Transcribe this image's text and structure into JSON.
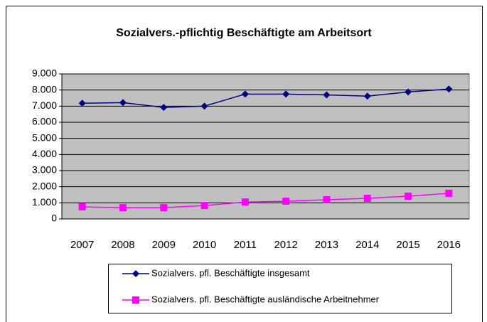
{
  "chart_data": {
    "type": "line",
    "title": "Sozialvers.-pflichtig Beschäftigte am Arbeitsort",
    "categories": [
      "2007",
      "2008",
      "2009",
      "2010",
      "2011",
      "2012",
      "2013",
      "2014",
      "2015",
      "2016"
    ],
    "series": [
      {
        "name": "Sozialvers. pfl. Beschäftigte insgesamt",
        "color": "#000080",
        "marker": "diamond",
        "values": [
          7180,
          7220,
          6920,
          7000,
          7750,
          7750,
          7700,
          7620,
          7880,
          8060
        ]
      },
      {
        "name": "Sozialvers. pfl. Beschäftigte ausländische Arbeitnehmer",
        "color": "#ff00ff",
        "marker": "square",
        "values": [
          750,
          700,
          700,
          830,
          1050,
          1100,
          1190,
          1280,
          1410,
          1590
        ]
      }
    ],
    "ylim": [
      0,
      9000
    ],
    "yticks": [
      0,
      {
        "value": 1000,
        "label": "1.000"
      },
      {
        "value": 2000,
        "label": "2.000"
      },
      {
        "value": 3000,
        "label": "3.000"
      },
      {
        "value": 4000,
        "label": "4.000"
      },
      {
        "value": 5000,
        "label": "5.000"
      },
      {
        "value": 6000,
        "label": "6.000"
      },
      {
        "value": 7000,
        "label": "7.000"
      },
      {
        "value": 8000,
        "label": "8.000"
      },
      {
        "value": 9000,
        "label": "9.000"
      }
    ],
    "grid": true,
    "plot_background": "#c0c0c0",
    "legend": "bottom"
  }
}
